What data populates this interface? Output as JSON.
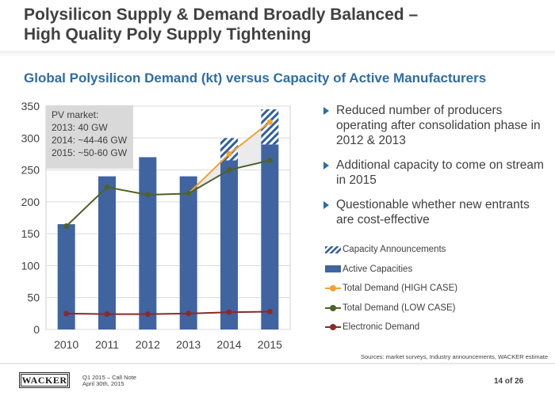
{
  "slide": {
    "title_line1": "Polysilicon Supply & Demand Broadly Balanced –",
    "title_line2": "High Quality Poly Supply Tightening",
    "subtitle": "Global Polysilicon Demand (kt) versus Capacity of Active Manufacturers"
  },
  "chart_data": {
    "type": "bar",
    "categories": [
      "2010",
      "2011",
      "2012",
      "2013",
      "2014",
      "2015"
    ],
    "ylim": [
      0,
      350
    ],
    "yticks": [
      0,
      50,
      100,
      150,
      200,
      250,
      300,
      350
    ],
    "title": "",
    "xlabel": "",
    "ylabel": "",
    "series": [
      {
        "name": "Active Capacities",
        "kind": "bar",
        "color": "#3f64a0",
        "values": [
          165,
          240,
          270,
          240,
          265,
          290
        ]
      },
      {
        "name": "Capacity Announcements",
        "kind": "bar-stacked-hatched",
        "color": "#2e5f9f",
        "values": [
          0,
          0,
          0,
          0,
          35,
          55
        ]
      },
      {
        "name": "Total Demand (HIGH CASE)",
        "kind": "line",
        "color": "#f5a033",
        "values": [
          null,
          null,
          null,
          213,
          275,
          325
        ]
      },
      {
        "name": "Total Demand (LOW CASE)",
        "kind": "line",
        "color": "#4f6228",
        "values": [
          162,
          223,
          211,
          213,
          250,
          265
        ]
      },
      {
        "name": "Electronic Demand",
        "kind": "line",
        "color": "#8b2a2a",
        "values": [
          25,
          24,
          24,
          25,
          27,
          28
        ]
      }
    ],
    "annotation": {
      "line1": "PV market:",
      "line2": "2013: 40 GW",
      "line3": "2014: ~44-46 GW",
      "line4": "2015: ~50-60 GW"
    },
    "gap_fill_color": "#e8e8e8",
    "grid": true,
    "legend_placement": "right"
  },
  "bullets": [
    "Reduced number of producers operating after consolidation phase in 2012 & 2013",
    "Additional capacity to come on stream in 2015",
    "Questionable whether new entrants are cost-effective"
  ],
  "legend": [
    {
      "label": "Capacity Announcements",
      "swatch": "hatch",
      "color": "#2e5f9f"
    },
    {
      "label": "Active Capacities",
      "swatch": "bar",
      "color": "#3f64a0"
    },
    {
      "label": "Total Demand (HIGH CASE)",
      "swatch": "line",
      "color": "#f5a033"
    },
    {
      "label": "Total Demand (LOW CASE)",
      "swatch": "line",
      "color": "#4f6228"
    },
    {
      "label": "Electronic Demand",
      "swatch": "line",
      "color": "#8b2a2a"
    }
  ],
  "source": "Sources: market surveys, Industry announcements, WACKER estimate",
  "footer": {
    "logo": "WACKER",
    "note_line1": "Q1 2015 – Call Note",
    "note_line2": "April 30th, 2015",
    "page": "14 of 26"
  }
}
